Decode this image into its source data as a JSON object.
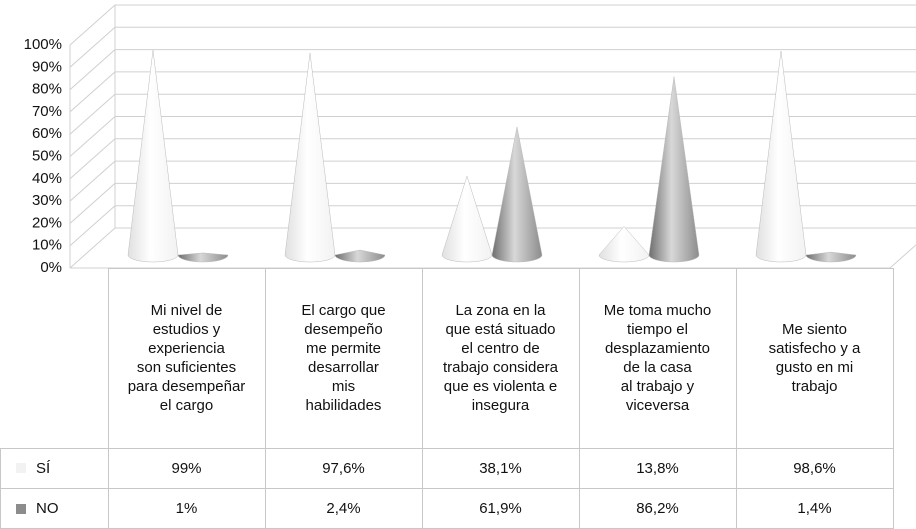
{
  "chart_data": {
    "type": "cone",
    "categories": [
      "Mi nivel de\nestudios y\nexperiencia\nson suficientes\npara desempeñar\nel cargo",
      "El cargo que\ndesempeño\nme permite\ndesarrollar\nmis\nhabilidades",
      "La zona en la\nque está situado\nel centro de\ntrabajo considera\nque es violenta e\ninsegura",
      "Me toma mucho\ntiempo el\ndesplazamiento\nde la casa\nal trabajo y\nviceversa",
      "Me siento\nsatisfecho y a\ngusto en mi\ntrabajo"
    ],
    "series": [
      {
        "name": "SÍ",
        "color": "#f2f2f2",
        "values": [
          99,
          97.6,
          38.1,
          13.8,
          98.6
        ],
        "value_labels": [
          "99%",
          "97,6%",
          "38,1%",
          "13,8%",
          "98,6%"
        ]
      },
      {
        "name": "NO",
        "color": "#8c8c8c",
        "values": [
          1,
          2.4,
          61.9,
          86.2,
          1.4
        ],
        "value_labels": [
          "1%",
          "2,4%",
          "61,9%",
          "86,2%",
          "1,4%"
        ]
      }
    ],
    "ylim": [
      0,
      100
    ],
    "yticks": [
      {
        "value": 0,
        "label": "0%"
      },
      {
        "value": 10,
        "label": "10%"
      },
      {
        "value": 20,
        "label": "20%"
      },
      {
        "value": 30,
        "label": "30%"
      },
      {
        "value": 40,
        "label": "40%"
      },
      {
        "value": 50,
        "label": "50%"
      },
      {
        "value": 60,
        "label": "60%"
      },
      {
        "value": 70,
        "label": "70%"
      },
      {
        "value": 80,
        "label": "80%"
      },
      {
        "value": 90,
        "label": "90%"
      },
      {
        "value": 100,
        "label": "100%"
      }
    ],
    "grid": true
  }
}
